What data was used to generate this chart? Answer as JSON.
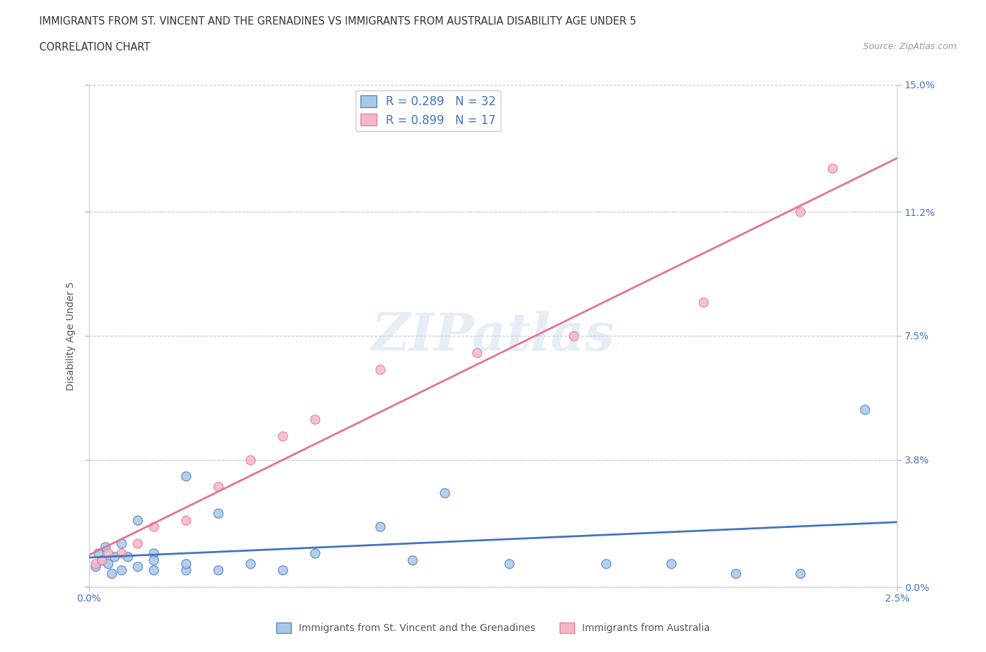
{
  "title_line1": "IMMIGRANTS FROM ST. VINCENT AND THE GRENADINES VS IMMIGRANTS FROM AUSTRALIA DISABILITY AGE UNDER 5",
  "title_line2": "CORRELATION CHART",
  "source_text": "Source: ZipAtlas.com",
  "ylabel": "Disability Age Under 5",
  "xlim": [
    0.0,
    0.025
  ],
  "ylim": [
    0.0,
    0.15
  ],
  "ytick_vals": [
    0.0,
    0.038,
    0.075,
    0.112,
    0.15
  ],
  "ytick_labels": [
    "0.0%",
    "3.8%",
    "7.5%",
    "11.2%",
    "15.0%"
  ],
  "xtick_vals": [
    0.0,
    0.025
  ],
  "xtick_labels": [
    "0.0%",
    "2.5%"
  ],
  "blue_scatter_x": [
    0.0002,
    0.0003,
    0.0004,
    0.0005,
    0.0006,
    0.0007,
    0.0008,
    0.001,
    0.001,
    0.0012,
    0.0015,
    0.0015,
    0.002,
    0.002,
    0.002,
    0.003,
    0.003,
    0.003,
    0.004,
    0.004,
    0.005,
    0.006,
    0.007,
    0.009,
    0.01,
    0.011,
    0.013,
    0.016,
    0.018,
    0.02,
    0.022,
    0.024
  ],
  "blue_scatter_y": [
    0.006,
    0.01,
    0.008,
    0.012,
    0.007,
    0.004,
    0.009,
    0.013,
    0.005,
    0.009,
    0.02,
    0.006,
    0.01,
    0.005,
    0.008,
    0.033,
    0.005,
    0.007,
    0.022,
    0.005,
    0.007,
    0.005,
    0.01,
    0.018,
    0.008,
    0.028,
    0.007,
    0.007,
    0.007,
    0.004,
    0.004,
    0.053
  ],
  "pink_scatter_x": [
    0.0002,
    0.0004,
    0.0006,
    0.001,
    0.0015,
    0.002,
    0.003,
    0.004,
    0.005,
    0.006,
    0.007,
    0.009,
    0.012,
    0.015,
    0.019,
    0.022,
    0.023
  ],
  "pink_scatter_y": [
    0.007,
    0.008,
    0.01,
    0.01,
    0.013,
    0.018,
    0.02,
    0.03,
    0.038,
    0.045,
    0.05,
    0.065,
    0.07,
    0.075,
    0.085,
    0.112,
    0.125
  ],
  "blue_R": 0.289,
  "blue_N": 32,
  "pink_R": 0.899,
  "pink_N": 17,
  "blue_scatter_color": "#a8c8e8",
  "pink_scatter_color": "#f4b8c8",
  "blue_line_color": "#4472C4",
  "pink_line_color": "#E87090",
  "legend_blue_label": "Immigrants from St. Vincent and the Grenadines",
  "legend_pink_label": "Immigrants from Australia",
  "watermark": "ZIPatlas",
  "background_color": "#ffffff",
  "grid_color": "#c8c8d8"
}
